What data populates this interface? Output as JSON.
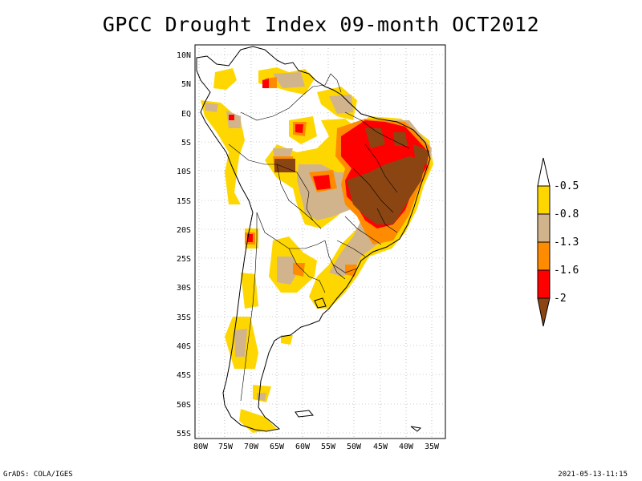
{
  "title": "GPCC Drought Index 09-month OCT2012",
  "footer": {
    "left": "GrADS: COLA/IGES",
    "right": "2021-05-13-11:15"
  },
  "map": {
    "lat_labels": [
      "10N",
      "5N",
      "EQ",
      "5S",
      "10S",
      "15S",
      "20S",
      "25S",
      "30S",
      "35S",
      "40S",
      "45S",
      "50S",
      "55S"
    ],
    "lon_labels": [
      "80W",
      "75W",
      "70W",
      "65W",
      "60W",
      "55W",
      "50W",
      "45W",
      "40W",
      "35W"
    ]
  },
  "legend": {
    "labels": [
      "-0.5",
      "-0.8",
      "-1.3",
      "-1.6",
      "-2"
    ],
    "colors": {
      "above": "#ffffff",
      "c1": "#ffd700",
      "c2": "#d2b48c",
      "c3": "#ff8c00",
      "c4": "#ff0000",
      "c5": "#8b4513"
    }
  }
}
